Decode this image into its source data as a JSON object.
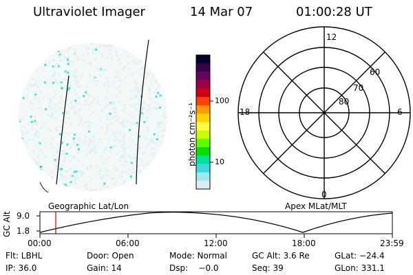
{
  "header": {
    "title": "Ultraviolet Imager",
    "date": "14 Mar 07",
    "time": "01:00:28 UT"
  },
  "colorbar": {
    "label": "photon cm⁻²s⁻¹",
    "ticks": [
      "100",
      "10"
    ],
    "colors": [
      "#000033",
      "#3a004a",
      "#6a0060",
      "#a00040",
      "#d00010",
      "#ff4000",
      "#ff9a00",
      "#ffd200",
      "#ffff40",
      "#c8ff00",
      "#60ff00",
      "#00e000",
      "#00e0a0",
      "#40d8e0",
      "#a0e8f0",
      "#dcecf0"
    ]
  },
  "polar": {
    "ring_labels": [
      "60",
      "70",
      "80"
    ],
    "mlt_labels": [
      "12",
      "18",
      "6",
      "0"
    ]
  },
  "altitude_plot": {
    "ylabel": "GC Alt",
    "ymax_label": "9.0",
    "ymin_label": "1.8",
    "left_title": "Geographic Lat/Lon",
    "right_title": "Apex MLat/MLT",
    "time_ticks": [
      "00:00",
      "06:00",
      "12:00",
      "18:00",
      "23:59"
    ],
    "marker_color": "#c00000"
  },
  "info": {
    "row1": {
      "filter": "Flt: LBHL",
      "door": "Door: Open",
      "mode": "Mode: Normal",
      "gc_alt": "GC Alt: 3.6 Re",
      "glat": "GLat: −24.4"
    },
    "row2": {
      "ip": "IP: 36.0",
      "gain": "Gain: 14",
      "dsp": "Dsp:    −0.0",
      "seq": "Seq: 39",
      "glon": "GLon: 331.1"
    }
  },
  "image_colors": {
    "pale": "#dcecf0",
    "cyan": "#40d8e0",
    "green": "#00c080"
  }
}
